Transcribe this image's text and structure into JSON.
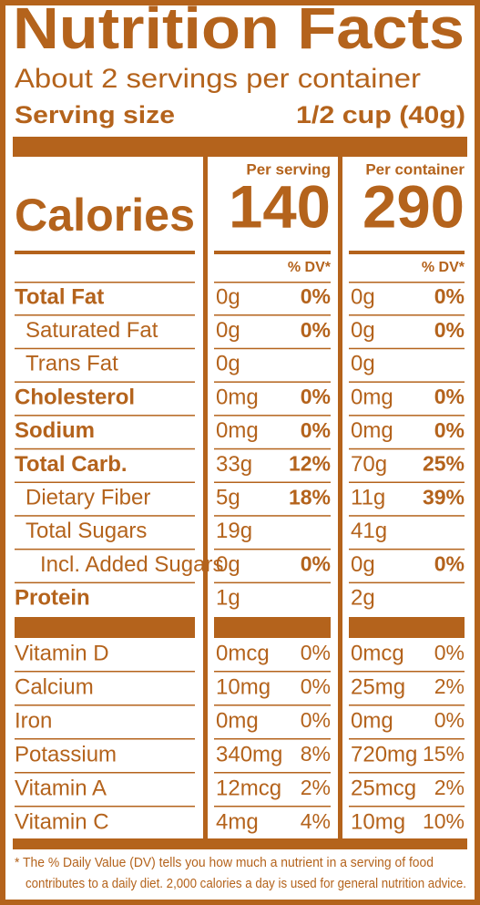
{
  "title": "Nutrition Facts",
  "servings": "About 2 servings per container",
  "serving_size": {
    "label": "Serving size",
    "value": "1/2 cup (40g)"
  },
  "columns": [
    "Per serving",
    "Per container"
  ],
  "calories": {
    "label": "Calories",
    "values": [
      "140",
      "290"
    ]
  },
  "dv_header": "% DV*",
  "nutrients": [
    {
      "name": "Total Fat",
      "bold": true,
      "indent": 0,
      "amounts": [
        "0g",
        "0g"
      ],
      "dv": [
        "0%",
        "0%"
      ]
    },
    {
      "name": "Saturated Fat",
      "bold": false,
      "indent": 1,
      "amounts": [
        "0g",
        "0g"
      ],
      "dv": [
        "0%",
        "0%"
      ]
    },
    {
      "name": "Trans Fat",
      "bold": false,
      "indent": 1,
      "amounts": [
        "0g",
        "0g"
      ],
      "dv": [
        null,
        null
      ]
    },
    {
      "name": "Cholesterol",
      "bold": true,
      "indent": 0,
      "amounts": [
        "0mg",
        "0mg"
      ],
      "dv": [
        "0%",
        "0%"
      ]
    },
    {
      "name": "Sodium",
      "bold": true,
      "indent": 0,
      "amounts": [
        "0mg",
        "0mg"
      ],
      "dv": [
        "0%",
        "0%"
      ]
    },
    {
      "name": "Total Carb.",
      "bold": true,
      "indent": 0,
      "amounts": [
        "33g",
        "70g"
      ],
      "dv": [
        "12%",
        "25%"
      ]
    },
    {
      "name": "Dietary Fiber",
      "bold": false,
      "indent": 1,
      "amounts": [
        "5g",
        "11g"
      ],
      "dv": [
        "18%",
        "39%"
      ]
    },
    {
      "name": "Total Sugars",
      "bold": false,
      "indent": 1,
      "amounts": [
        "19g",
        "41g"
      ],
      "dv": [
        null,
        null
      ]
    },
    {
      "name": "Incl. Added Sugars",
      "bold": false,
      "indent": 2,
      "amounts": [
        "0g",
        "0g"
      ],
      "dv": [
        "0%",
        "0%"
      ]
    },
    {
      "name": "Protein",
      "bold": true,
      "indent": 0,
      "amounts": [
        "1g",
        "2g"
      ],
      "dv": [
        null,
        null
      ]
    }
  ],
  "vitamins": [
    {
      "name": "Vitamin D",
      "amounts": [
        "0mcg",
        "0mcg"
      ],
      "dv": [
        "0%",
        "0%"
      ]
    },
    {
      "name": "Calcium",
      "amounts": [
        "10mg",
        "25mg"
      ],
      "dv": [
        "0%",
        "2%"
      ]
    },
    {
      "name": "Iron",
      "amounts": [
        "0mg",
        "0mg"
      ],
      "dv": [
        "0%",
        "0%"
      ]
    },
    {
      "name": "Potassium",
      "amounts": [
        "340mg",
        "720mg"
      ],
      "dv": [
        "8%",
        "15%"
      ]
    },
    {
      "name": "Vitamin A",
      "amounts": [
        "12mcg",
        "25mcg"
      ],
      "dv": [
        "2%",
        "2%"
      ]
    },
    {
      "name": "Vitamin C",
      "amounts": [
        "4mg",
        "10mg"
      ],
      "dv": [
        "4%",
        "10%"
      ]
    }
  ],
  "footnote": [
    "* The % Daily Value (DV) tells you how much a nutrient in a serving of food",
    "contributes to a daily diet. 2,000 calories a day is used for general nutrition advice."
  ]
}
